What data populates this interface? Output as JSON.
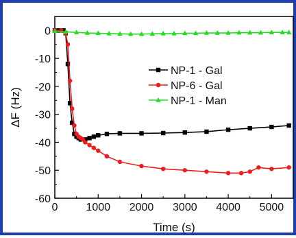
{
  "chart_data": {
    "type": "line",
    "title": "",
    "xlabel": "Time (s)",
    "ylabel": "ΔF (Hz)",
    "xlim": [
      0,
      5500
    ],
    "ylim": [
      -60,
      5
    ],
    "x_ticks": [
      0,
      1000,
      2000,
      3000,
      4000,
      5000
    ],
    "x_tick_labels": [
      "0",
      "1000",
      "2000",
      "3000",
      "4000",
      "5000"
    ],
    "y_ticks": [
      0,
      -10,
      -20,
      -30,
      -40,
      -50,
      -60
    ],
    "y_tick_labels": [
      "0",
      "-10",
      "-20",
      "-30",
      "-40",
      "-50",
      "-60"
    ],
    "grid": false,
    "legend_position": "center-right",
    "series": [
      {
        "name": "NP-1 - Gal",
        "color": "#000000",
        "marker": "square",
        "x": [
          0,
          100,
          200,
          250,
          300,
          350,
          400,
          450,
          500,
          550,
          600,
          700,
          800,
          900,
          1000,
          1200,
          1500,
          2000,
          2500,
          3000,
          3500,
          4000,
          4500,
          5000,
          5400
        ],
        "y": [
          0,
          0,
          0,
          -1,
          -12,
          -26,
          -33,
          -37,
          -38,
          -38.5,
          -39,
          -39,
          -38.5,
          -38,
          -37.5,
          -37,
          -36.8,
          -36.8,
          -36.7,
          -36.5,
          -36.2,
          -35.5,
          -35,
          -34.5,
          -34
        ]
      },
      {
        "name": "NP-6 - Gal",
        "color": "#ee1c1c",
        "marker": "circle",
        "x": [
          0,
          150,
          250,
          300,
          350,
          400,
          450,
          500,
          550,
          600,
          650,
          700,
          800,
          900,
          1000,
          1200,
          1500,
          2000,
          2500,
          3000,
          3500,
          4000,
          4300,
          4500,
          4700,
          5000,
          5400
        ],
        "y": [
          0,
          0,
          -1,
          -5,
          -18,
          -28,
          -34,
          -37,
          -38,
          -38.5,
          -39,
          -40,
          -41,
          -42,
          -43,
          -45,
          -47,
          -48.5,
          -49.5,
          -50,
          -50.5,
          -51,
          -51,
          -50.5,
          -49,
          -49.5,
          -49
        ]
      },
      {
        "name": "NP-1 - Man",
        "color": "#22dd22",
        "marker": "triangle",
        "x": [
          0,
          250,
          500,
          750,
          1000,
          1250,
          1500,
          1750,
          2000,
          2250,
          2500,
          2750,
          3000,
          3250,
          3500,
          3750,
          4000,
          4250,
          4500,
          4750,
          5000,
          5250,
          5400
        ],
        "y": [
          -0.3,
          -0.5,
          -0.7,
          -0.9,
          -1,
          -1.1,
          -1.2,
          -1.3,
          -1.3,
          -1.2,
          -1.1,
          -1.1,
          -1,
          -1,
          -0.9,
          -0.9,
          -0.9,
          -0.8,
          -0.8,
          -0.8,
          -0.7,
          -0.7,
          -0.7
        ]
      }
    ]
  }
}
